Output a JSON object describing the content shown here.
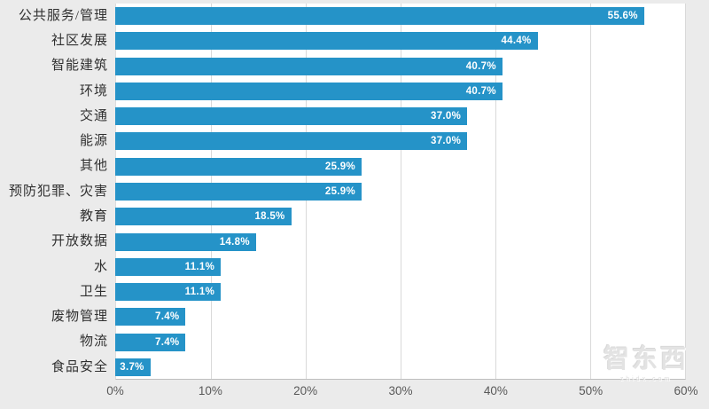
{
  "chart_data": {
    "type": "bar",
    "orientation": "horizontal",
    "title": "",
    "xlabel": "",
    "ylabel": "",
    "categories": [
      "公共服务/管理",
      "社区发展",
      "智能建筑",
      "环境",
      "交通",
      "能源",
      "其他",
      "预防犯罪、灾害",
      "教育",
      "开放数据",
      "水",
      "卫生",
      "废物管理",
      "物流",
      "食品安全"
    ],
    "values": [
      55.6,
      44.4,
      40.7,
      40.7,
      37.0,
      37.0,
      25.9,
      25.9,
      18.5,
      14.8,
      11.1,
      11.1,
      7.4,
      7.4,
      3.7
    ],
    "value_labels": [
      "55.6%",
      "44.4%",
      "40.7%",
      "40.7%",
      "37.0%",
      "37.0%",
      "25.9%",
      "25.9%",
      "18.5%",
      "14.8%",
      "11.1%",
      "11.1%",
      "7.4%",
      "7.4%",
      "3.7%"
    ],
    "x_ticks": [
      "0%",
      "10%",
      "20%",
      "30%",
      "40%",
      "50%",
      "60%"
    ],
    "xlim": [
      0,
      60
    ],
    "grid": true,
    "legend": false,
    "bar_color": "#2593c8",
    "value_label_position": "inside-end"
  },
  "watermark": {
    "logo": "智东西",
    "subtext": "zhidx.com"
  },
  "colors": {
    "background": "#ebebeb",
    "plot_background": "#ffffff",
    "gridline": "#d9d9d9",
    "axis_line": "#bfbfbf",
    "bar": "#2593c8",
    "category_text": "#303030",
    "value_text": "#ffffff",
    "tick_text": "#595959",
    "watermark_text": "#e3e3e3"
  }
}
